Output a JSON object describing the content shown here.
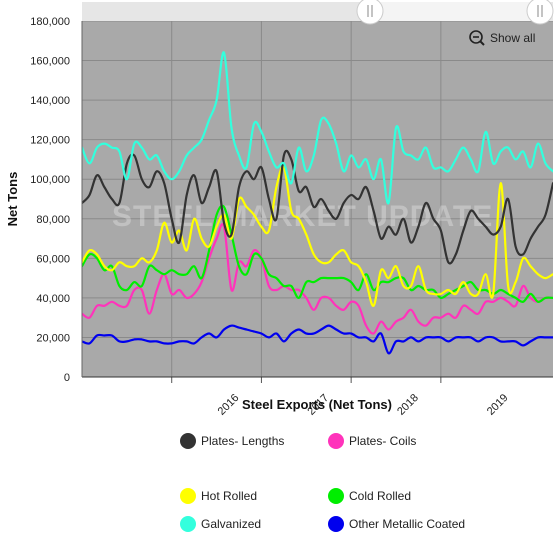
{
  "watermark": "STEEL MARKET UPDATE",
  "controls": {
    "show_all_label": "Show all",
    "zoom_icon": "zoom-out-icon"
  },
  "chart_data": {
    "type": "line",
    "xlabel": "Steel Exports (Net Tons)",
    "ylabel": "Net Tons",
    "x_ticks": [
      "2016",
      "2017",
      "2018",
      "2019"
    ],
    "x_start": "Jan 2015",
    "x_end": "Apr 2020",
    "y_ticks": [
      "0",
      "20,000",
      "40,000",
      "60,000",
      "80,000",
      "100,000",
      "120,000",
      "140,000",
      "160,000",
      "180,000"
    ],
    "ylim": [
      0,
      180000
    ],
    "grid": true,
    "legend_position": "bottom",
    "series": [
      {
        "name": "Plates- Lengths",
        "color": "#333333",
        "values": [
          88000,
          92000,
          102000,
          96000,
          90000,
          88000,
          108000,
          112000,
          100000,
          96000,
          104000,
          98000,
          80000,
          68000,
          92000,
          102000,
          88000,
          96000,
          104000,
          78000,
          72000,
          96000,
          104000,
          100000,
          106000,
          90000,
          80000,
          112000,
          110000,
          94000,
          96000,
          86000,
          90000,
          84000,
          80000,
          88000,
          92000,
          90000,
          96000,
          84000,
          70000,
          76000,
          72000,
          80000,
          68000,
          76000,
          88000,
          80000,
          74000,
          58000,
          62000,
          74000,
          84000,
          80000,
          76000,
          72000,
          76000,
          90000,
          66000,
          62000,
          70000,
          76000,
          82000,
          98000
        ]
      },
      {
        "name": "Plates- Coils",
        "color": "#ff33bb",
        "values": [
          32000,
          30000,
          36000,
          36000,
          38000,
          36000,
          36000,
          44000,
          44000,
          32000,
          44000,
          52000,
          42000,
          44000,
          40000,
          42000,
          48000,
          60000,
          70000,
          76000,
          44000,
          58000,
          56000,
          64000,
          60000,
          46000,
          44000,
          46000,
          44000,
          44000,
          40000,
          34000,
          40000,
          40000,
          36000,
          34000,
          38000,
          36000,
          26000,
          22000,
          28000,
          24000,
          28000,
          30000,
          34000,
          28000,
          26000,
          30000,
          30000,
          32000,
          30000,
          36000,
          34000,
          32000,
          38000,
          38000,
          40000,
          38000,
          36000,
          46000,
          40000,
          38000,
          40000,
          40000
        ]
      },
      {
        "name": "Hot Rolled",
        "color": "#ffff00",
        "values": [
          58000,
          64000,
          62000,
          56000,
          54000,
          58000,
          56000,
          56000,
          60000,
          58000,
          64000,
          78000,
          68000,
          74000,
          64000,
          80000,
          70000,
          66000,
          76000,
          82000,
          70000,
          90000,
          86000,
          82000,
          76000,
          74000,
          96000,
          106000,
          84000,
          80000,
          72000,
          62000,
          58000,
          58000,
          62000,
          64000,
          58000,
          56000,
          48000,
          36000,
          54000,
          50000,
          56000,
          46000,
          46000,
          56000,
          44000,
          42000,
          42000,
          44000,
          42000,
          48000,
          42000,
          42000,
          52000,
          42000,
          98000,
          46000,
          48000,
          60000,
          56000,
          52000,
          50000,
          52000
        ]
      },
      {
        "name": "Cold Rolled",
        "color": "#00ee00",
        "values": [
          56000,
          62000,
          60000,
          54000,
          56000,
          46000,
          44000,
          48000,
          46000,
          56000,
          54000,
          52000,
          54000,
          52000,
          52000,
          56000,
          50000,
          64000,
          82000,
          86000,
          72000,
          56000,
          52000,
          62000,
          60000,
          52000,
          50000,
          46000,
          46000,
          40000,
          48000,
          48000,
          50000,
          50000,
          50000,
          50000,
          48000,
          44000,
          52000,
          44000,
          48000,
          48000,
          50000,
          50000,
          44000,
          46000,
          44000,
          44000,
          40000,
          42000,
          44000,
          46000,
          48000,
          44000,
          44000,
          42000,
          44000,
          42000,
          40000,
          38000,
          42000,
          38000,
          40000,
          40000
        ]
      },
      {
        "name": "Galvanized",
        "color": "#33ffdd",
        "values": [
          116000,
          108000,
          116000,
          118000,
          116000,
          114000,
          100000,
          118000,
          116000,
          110000,
          112000,
          104000,
          100000,
          104000,
          112000,
          116000,
          120000,
          130000,
          140000,
          164000,
          126000,
          112000,
          106000,
          128000,
          124000,
          114000,
          106000,
          108000,
          98000,
          116000,
          104000,
          112000,
          130000,
          128000,
          118000,
          104000,
          112000,
          106000,
          110000,
          100000,
          110000,
          88000,
          126000,
          114000,
          112000,
          110000,
          116000,
          106000,
          106000,
          104000,
          110000,
          116000,
          110000,
          104000,
          124000,
          108000,
          114000,
          116000,
          110000,
          114000,
          106000,
          118000,
          108000,
          104000
        ]
      },
      {
        "name": "Other Metallic Coated",
        "color": "#0000ee",
        "values": [
          18000,
          17000,
          21000,
          21000,
          21000,
          18000,
          18000,
          19000,
          19000,
          18000,
          18000,
          17000,
          17000,
          18000,
          18000,
          17000,
          20000,
          22000,
          20000,
          24000,
          26000,
          25000,
          24000,
          23000,
          22000,
          20000,
          22000,
          18000,
          22000,
          24000,
          22000,
          22000,
          24000,
          26000,
          24000,
          22000,
          22000,
          20000,
          20000,
          18000,
          22000,
          12000,
          18000,
          18000,
          20000,
          18000,
          20000,
          20000,
          20000,
          18000,
          20000,
          20000,
          20000,
          18000,
          20000,
          20000,
          18000,
          18000,
          18000,
          16000,
          18000,
          20000,
          20000,
          20000
        ]
      }
    ]
  }
}
